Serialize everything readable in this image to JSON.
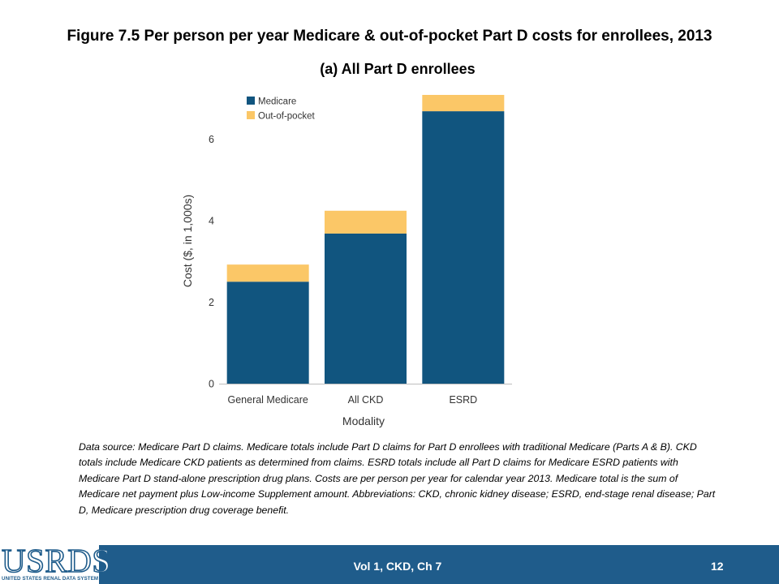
{
  "figure_title": "Figure 7.5 Per person per year Medicare & out-of-pocket Part D costs for enrollees, 2013",
  "chart_data": {
    "type": "bar",
    "stacked": true,
    "title": "(a) All Part D enrollees",
    "xlabel": "Modality",
    "ylabel": "Cost ($, in 1,000s)",
    "categories": [
      "General Medicare",
      "All CKD",
      "ESRD"
    ],
    "series": [
      {
        "name": "Medicare",
        "values": [
          2.5,
          3.68,
          6.68
        ],
        "color": "#11557f"
      },
      {
        "name": "Out-of-pocket",
        "values": [
          0.42,
          0.56,
          0.4
        ],
        "color": "#fbc767"
      }
    ],
    "yticks": [
      "0",
      "2",
      "4",
      "6"
    ],
    "ylim": [
      0,
      7.08
    ],
    "grid": false,
    "legend_position": "top-left"
  },
  "note": "Data source: Medicare Part D claims. Medicare totals include Part D claims for Part D enrollees with traditional Medicare (Parts A & B). CKD totals include Medicare CKD patients as determined from claims. ESRD totals include all Part D claims for Medicare ESRD patients with Medicare Part D stand-alone prescription drug plans. Costs are per person per year for calendar year 2013. Medicare total is the sum of Medicare net payment plus Low-income Supplement amount. Abbreviations: CKD, chronic kidney disease; ESRD, end-stage renal disease; Part D, Medicare prescription drug coverage benefit.",
  "footer": {
    "text": "Vol 1, CKD, Ch 7",
    "page": "12",
    "logo_text": "USRDS",
    "logo_subtext": "UNITED STATES RENAL DATA SYSTEM",
    "color": "#1f5c8b"
  }
}
